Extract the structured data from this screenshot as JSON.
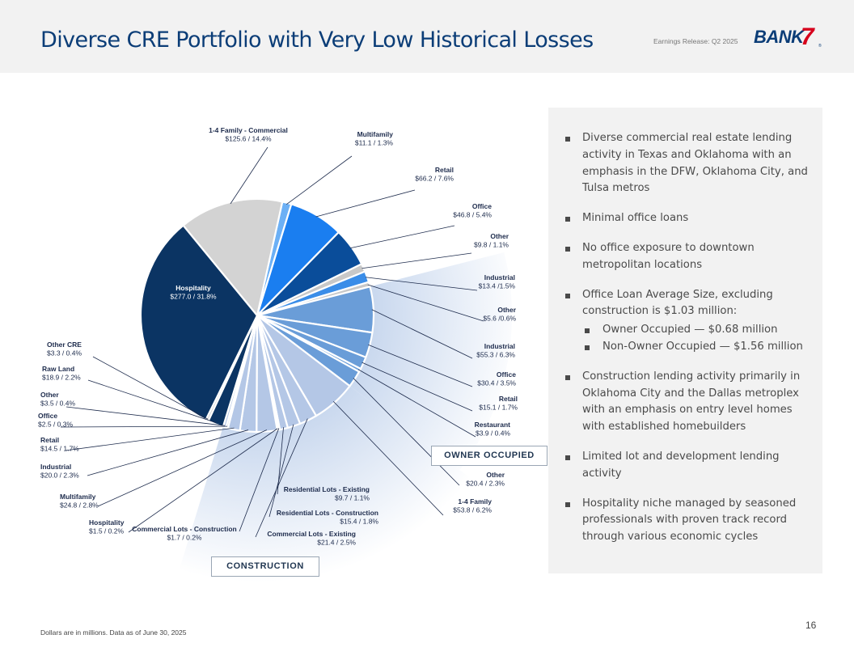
{
  "header": {
    "title": "Diverse CRE Portfolio with Very Low Historical Losses",
    "release": "Earnings Release: Q2 2025",
    "logo_text": "BANK",
    "logo_seven": "7",
    "logo_mark": "®"
  },
  "colors": {
    "navy": "#0b3463",
    "light_gray": "#d3d3d3",
    "light_blue": "#6cb0f5",
    "bright_blue": "#1a7ef0",
    "royal": "#0a4d9a",
    "gray2": "#c8c8c8",
    "sky": "#3a8de8",
    "owner_occupied": "#6a9dd8",
    "construction": "#b4c7e6"
  },
  "chart_data": {
    "type": "pie",
    "units": "Dollars in millions",
    "slices": [
      {
        "label": "Multifamily",
        "value": 11.1,
        "pct": "1.3%",
        "group": "other",
        "color": "light_blue",
        "text": "$11.1  /  1.3%"
      },
      {
        "label": "Retail",
        "value": 66.2,
        "pct": "7.6%",
        "group": "other",
        "color": "bright_blue",
        "text": "$66.2  /  7.6%"
      },
      {
        "label": "Office",
        "value": 46.8,
        "pct": "5.4%",
        "group": "other",
        "color": "royal",
        "text": "$46.8  /  5.4%"
      },
      {
        "label": "Other",
        "value": 9.8,
        "pct": "1.1%",
        "group": "other",
        "color": "gray2",
        "text": "$9.8  /  1.1%"
      },
      {
        "label": "Industrial",
        "value": 13.4,
        "pct": "1.5%",
        "group": "other",
        "color": "sky",
        "text": "$13.4 /1.5%"
      },
      {
        "label": "Other",
        "value": 5.6,
        "pct": "0.6%",
        "group": "other",
        "color": "gray2",
        "text": "$5.6 /0.6%"
      },
      {
        "label": "Industrial",
        "value": 55.3,
        "pct": "6.3%",
        "group": "owner_occupied",
        "text": "$55.3  /  6.3%"
      },
      {
        "label": "Office",
        "value": 30.4,
        "pct": "3.5%",
        "group": "owner_occupied",
        "text": "$30.4  /  3.5%"
      },
      {
        "label": "Retail",
        "value": 15.1,
        "pct": "1.7%",
        "group": "owner_occupied",
        "text": "$15.1  /  1.7%"
      },
      {
        "label": "Restaurant",
        "value": 3.9,
        "pct": "0.4%",
        "group": "owner_occupied",
        "text": "$3.9  /  0.4%"
      },
      {
        "label": "Other",
        "value": 20.4,
        "pct": "2.3%",
        "group": "owner_occupied",
        "text": "$20.4 / 2.3%"
      },
      {
        "label": "1-4 Family",
        "value": 53.8,
        "pct": "6.2%",
        "group": "construction",
        "text": "$53.8  / 6.2%"
      },
      {
        "label": "Commercial Lots - Existing",
        "value": 21.4,
        "pct": "2.5%",
        "group": "construction",
        "text": "$21.4  /  2.5%"
      },
      {
        "label": "Residential Lots - Construction",
        "value": 15.4,
        "pct": "1.8%",
        "group": "construction",
        "text": "$15.4  /  1.8%"
      },
      {
        "label": "Residential Lots - Existing",
        "value": 9.7,
        "pct": "1.1%",
        "group": "construction",
        "text": "$9.7  /  1.1%"
      },
      {
        "label": "Commercial Lots - Construction",
        "value": 1.7,
        "pct": "0.2%",
        "group": "construction",
        "text": "$1.7  /  0.2%"
      },
      {
        "label": "Hospitality",
        "value": 1.5,
        "pct": "0.2%",
        "group": "construction",
        "text": "$1.5  /  0.2%"
      },
      {
        "label": "Multifamily",
        "value": 24.8,
        "pct": "2.8%",
        "group": "construction",
        "text": "$24.8  /  2.8%"
      },
      {
        "label": "Industrial",
        "value": 20.0,
        "pct": "2.3%",
        "group": "construction",
        "text": "$20.0  /  2.3%"
      },
      {
        "label": "Retail",
        "value": 14.5,
        "pct": "1.7%",
        "group": "construction",
        "text": "$14.5  / 1.7%"
      },
      {
        "label": "Office",
        "value": 2.5,
        "pct": "0.3%",
        "group": "construction",
        "text": "$2.5  /  0.3%"
      },
      {
        "label": "Other",
        "value": 3.5,
        "pct": "0.4%",
        "group": "construction",
        "text": "$3.5  / 0.4%"
      },
      {
        "label": "Raw Land",
        "value": 18.9,
        "pct": "2.2%",
        "group": "other",
        "color": "navy",
        "text": "$18.9  /  2.2%"
      },
      {
        "label": "Other CRE",
        "value": 3.3,
        "pct": "0.4%",
        "group": "other",
        "color": "light_gray",
        "text": "$3.3  /  0.4%"
      },
      {
        "label": "Hospitality",
        "value": 277.0,
        "pct": "31.8%",
        "group": "other",
        "color": "navy",
        "text": "$277.0  /  31.8%"
      },
      {
        "label": "1-4 Family - Commercial",
        "value": 125.6,
        "pct": "14.4%",
        "group": "other",
        "color": "light_gray",
        "text": "$125.6  /  14.4%"
      }
    ],
    "group_labels": {
      "owner_occupied": "OWNER OCCUPIED",
      "construction": "CONSTRUCTION"
    }
  },
  "panel": {
    "bullets": [
      "Diverse commercial real estate lending activity in Texas and Oklahoma with an emphasis in the DFW, Oklahoma City, and Tulsa metros",
      "Minimal office loans",
      "No office exposure to downtown metropolitan locations",
      "Office Loan Average Size, excluding construction is $1.03 million:",
      "Construction lending activity primarily in Oklahoma City and the Dallas metroplex with an emphasis on entry level homes with established homebuilders",
      "Limited lot and development lending activity",
      "Hospitality niche managed by seasoned professionals with proven track record through various economic cycles"
    ],
    "sub_bullets": [
      "Owner Occupied — $0.68 million",
      "Non-Owner Occupied — $1.56 million"
    ]
  },
  "footer": {
    "note": "Dollars are in millions. Data as of June 30, 2025",
    "page": "16"
  }
}
